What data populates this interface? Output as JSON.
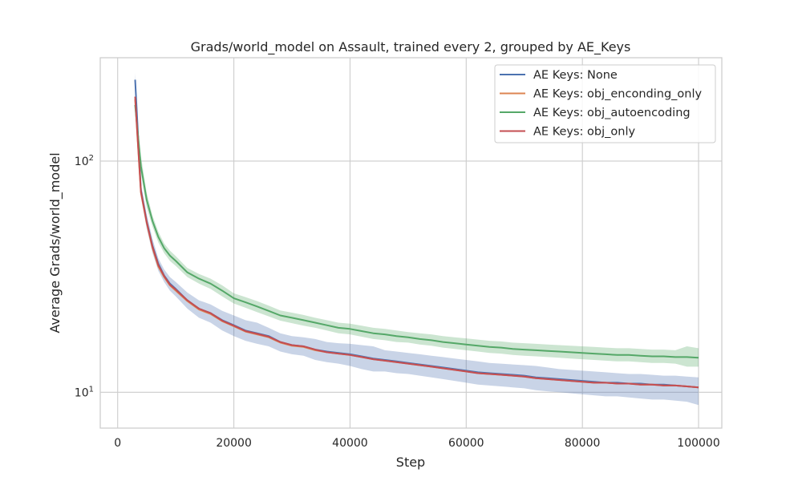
{
  "chart_data": {
    "type": "line",
    "title": "Grads/world_model on Assault, trained every 2, grouped by AE_Keys",
    "xlabel": "Step",
    "ylabel": "Average Grads/world_model",
    "xlim": [
      -3000,
      104000
    ],
    "ylim": [
      7,
      280
    ],
    "yscale": "log",
    "grid": true,
    "legend_position": "top-right",
    "x_ticks": [
      0,
      20000,
      40000,
      60000,
      80000,
      100000
    ],
    "x_tick_labels": [
      "0",
      "20000",
      "40000",
      "60000",
      "80000",
      "100000"
    ],
    "y_ticks": [
      10,
      100
    ],
    "y_tick_base": "10",
    "y_tick_exponents": [
      "1",
      "2"
    ],
    "x": [
      3000,
      4000,
      5000,
      6000,
      7000,
      8000,
      9000,
      10000,
      12000,
      14000,
      16000,
      18000,
      20000,
      22000,
      24000,
      26000,
      28000,
      30000,
      32000,
      34000,
      36000,
      38000,
      40000,
      42000,
      44000,
      46000,
      48000,
      50000,
      52000,
      54000,
      56000,
      58000,
      60000,
      62000,
      64000,
      66000,
      68000,
      70000,
      72000,
      74000,
      76000,
      78000,
      80000,
      82000,
      84000,
      86000,
      88000,
      90000,
      92000,
      94000,
      96000,
      98000,
      100000
    ],
    "series": [
      {
        "name": "AE Keys: None",
        "color": "#4c72b0",
        "values": [
          225,
          75,
          55,
          43,
          36,
          32,
          29.5,
          28,
          25,
          23,
          22,
          20.5,
          19.5,
          18.5,
          18,
          17.5,
          16.5,
          16,
          15.8,
          15.3,
          15,
          14.8,
          14.6,
          14.3,
          14,
          13.8,
          13.6,
          13.4,
          13.2,
          13,
          12.8,
          12.6,
          12.4,
          12.2,
          12.1,
          12,
          11.9,
          11.8,
          11.6,
          11.5,
          11.4,
          11.3,
          11.2,
          11.1,
          11,
          11,
          10.9,
          10.9,
          10.8,
          10.8,
          10.7,
          10.6,
          10.5
        ],
        "band_upper": [
          240,
          80,
          59,
          46,
          38,
          34,
          31.5,
          30,
          27,
          25,
          24,
          22.5,
          21.5,
          20.5,
          20,
          19,
          18,
          17.5,
          17.3,
          17,
          16.5,
          16.3,
          16.2,
          16,
          15.8,
          15.2,
          15,
          14.8,
          14.6,
          14.4,
          14.2,
          14,
          13.8,
          13.6,
          13.4,
          13.3,
          13.2,
          13.1,
          13,
          12.8,
          12.6,
          12.5,
          12.4,
          12.3,
          12.2,
          12.1,
          12,
          12,
          11.9,
          11.8,
          11.8,
          11.7,
          11.6
        ],
        "band_lower": [
          210,
          70,
          51,
          40,
          33.5,
          30,
          27.5,
          26,
          23,
          21,
          20,
          18.5,
          17.5,
          16.7,
          16.2,
          15.8,
          15,
          14.6,
          14.4,
          13.8,
          13.5,
          13.3,
          13,
          12.6,
          12.3,
          12.3,
          12.1,
          12,
          11.8,
          11.6,
          11.4,
          11.2,
          11,
          10.8,
          10.7,
          10.6,
          10.5,
          10.4,
          10.2,
          10.1,
          10,
          9.9,
          9.8,
          9.7,
          9.6,
          9.6,
          9.5,
          9.4,
          9.3,
          9.3,
          9.2,
          9.1,
          8.8
        ]
      },
      {
        "name": "AE Keys: obj_enconding_only",
        "color": "#dd8452",
        "values": [
          185,
          73,
          54,
          42,
          35,
          31.5,
          29,
          27.5,
          24.8,
          22.8,
          21.8,
          20.3,
          19.3,
          18.3,
          17.8,
          17.3,
          16.4,
          15.9,
          15.7,
          15.2,
          14.9,
          14.7,
          14.5,
          14.2,
          13.9,
          13.7,
          13.5,
          13.3,
          13.1,
          12.9,
          12.7,
          12.5,
          12.3,
          12.1,
          12,
          11.9,
          11.8,
          11.7,
          11.5,
          11.4,
          11.3,
          11.2,
          11.1,
          11,
          11,
          10.9,
          10.9,
          10.8,
          10.8,
          10.7,
          10.7,
          10.6,
          10.5
        ]
      },
      {
        "name": "AE Keys: obj_autoencoding",
        "color": "#55a868",
        "values": [
          175,
          95,
          68,
          55,
          47,
          42,
          39,
          37,
          33,
          31,
          29.5,
          27.5,
          25.5,
          24.5,
          23.5,
          22.5,
          21.5,
          21,
          20.5,
          20,
          19.5,
          19,
          18.8,
          18.4,
          18,
          17.8,
          17.5,
          17.3,
          17,
          16.8,
          16.5,
          16.3,
          16.1,
          15.9,
          15.7,
          15.6,
          15.4,
          15.3,
          15.2,
          15.1,
          15,
          14.9,
          14.8,
          14.7,
          14.6,
          14.5,
          14.5,
          14.4,
          14.3,
          14.3,
          14.2,
          14.2,
          14.1
        ],
        "band_upper": [
          185,
          105,
          73,
          58,
          49.5,
          44,
          41,
          38.8,
          34.5,
          32.5,
          31,
          29,
          26.8,
          25.8,
          24.8,
          23.7,
          22.6,
          22.1,
          21.6,
          21,
          20.5,
          20,
          19.8,
          19.4,
          19,
          18.8,
          18.5,
          18.2,
          18,
          17.8,
          17.5,
          17.3,
          17.1,
          16.9,
          16.7,
          16.6,
          16.4,
          16.3,
          16.2,
          16.1,
          16,
          15.9,
          15.8,
          15.7,
          15.6,
          15.5,
          15.5,
          15.4,
          15.3,
          15.3,
          15.2,
          15.8,
          15.5
        ],
        "band_lower": [
          165,
          88,
          63,
          52,
          44.5,
          40,
          37,
          35.2,
          31.5,
          29.5,
          28,
          26,
          24.2,
          23.2,
          22.2,
          21.3,
          20.4,
          19.9,
          19.4,
          19,
          18.5,
          18,
          17.8,
          17.4,
          17,
          16.8,
          16.5,
          16.4,
          16.1,
          15.9,
          15.6,
          15.4,
          15.2,
          15,
          14.8,
          14.7,
          14.5,
          14.4,
          14.3,
          14.2,
          14.1,
          14,
          13.9,
          13.8,
          13.7,
          13.6,
          13.6,
          13.5,
          13.4,
          13.4,
          13.3,
          12.9,
          12.9
        ]
      },
      {
        "name": "AE Keys: obj_only",
        "color": "#c44e52",
        "values": [
          190,
          74,
          54.5,
          42.5,
          35.5,
          31.8,
          29.2,
          27.8,
          25,
          23,
          22,
          20.4,
          19.4,
          18.4,
          17.9,
          17.4,
          16.5,
          16,
          15.8,
          15.3,
          14.9,
          14.7,
          14.5,
          14.2,
          13.9,
          13.7,
          13.5,
          13.3,
          13.1,
          12.9,
          12.7,
          12.5,
          12.3,
          12.1,
          12,
          11.9,
          11.8,
          11.7,
          11.5,
          11.4,
          11.3,
          11.2,
          11.1,
          11,
          11,
          10.9,
          10.9,
          10.8,
          10.8,
          10.7,
          10.7,
          10.6,
          10.5
        ]
      }
    ]
  }
}
